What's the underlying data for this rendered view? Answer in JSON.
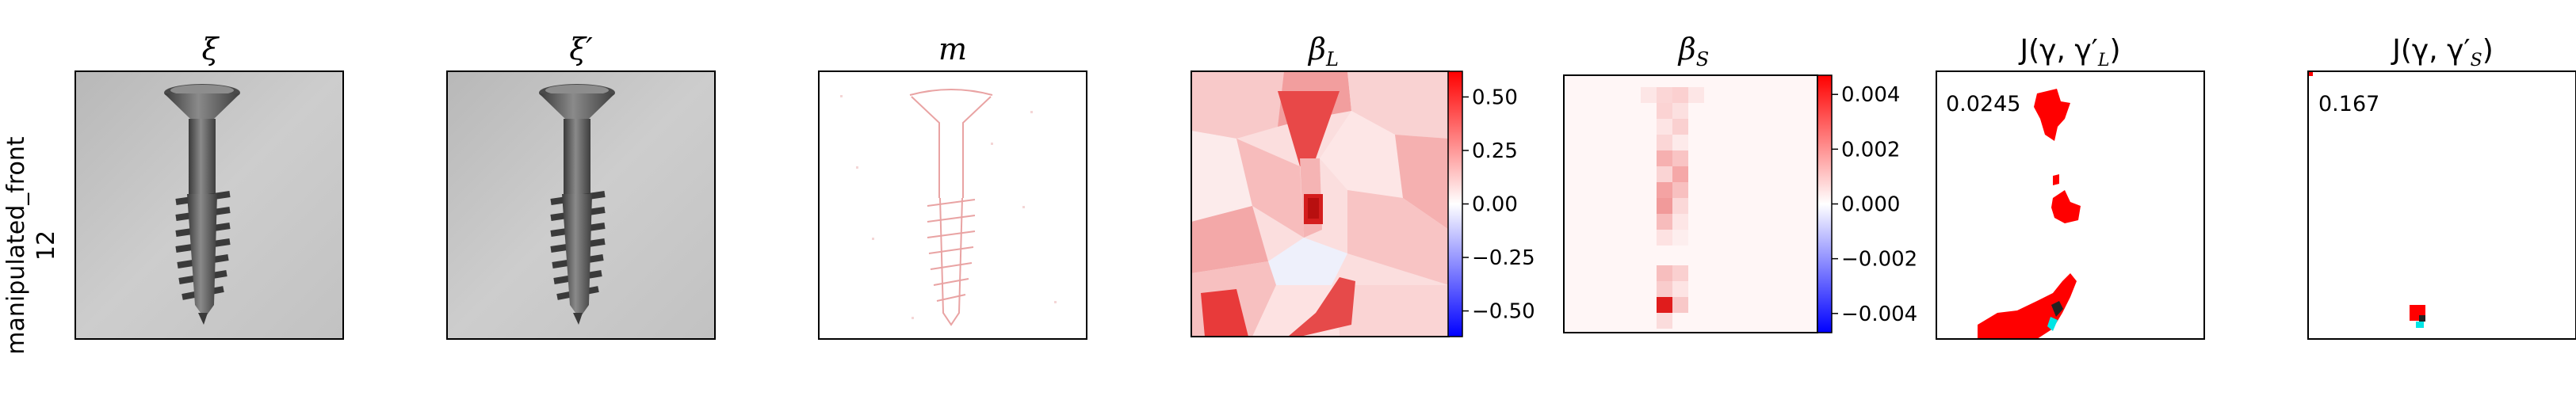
{
  "row": {
    "label_line1": "manipulated_front",
    "label_line2": "12"
  },
  "panels": [
    {
      "id": "xi",
      "title": "ξ"
    },
    {
      "id": "xi_prime",
      "title": "ξ′"
    },
    {
      "id": "m",
      "title": "m"
    },
    {
      "id": "beta_L",
      "title_main": "β",
      "title_sub": "L"
    },
    {
      "id": "beta_S",
      "title_main": "β",
      "title_sub": "S"
    },
    {
      "id": "J_L",
      "title": "J(γ, γ′",
      "title_sub": "L",
      "title_end": ")",
      "annotation": "0.0245"
    },
    {
      "id": "J_S",
      "title": "J(γ, γ′",
      "title_sub": "S",
      "title_end": ")",
      "annotation": "0.167"
    }
  ],
  "colorbars": [
    {
      "id": "beta_L_cbar",
      "ticks": [
        "0.50",
        "0.25",
        "0.00",
        "−0.25",
        "−0.50"
      ],
      "tick_values": [
        0.5,
        0.25,
        0,
        -0.25,
        -0.5
      ],
      "vmin": -0.62,
      "vmax": 0.62,
      "colors": {
        "max": "#ff0000",
        "mid": "#ffffff",
        "min": "#0000ff"
      }
    },
    {
      "id": "beta_S_cbar",
      "ticks": [
        "0.004",
        "0.002",
        "0.000",
        "−0.002",
        "−0.004"
      ],
      "tick_values": [
        0.004,
        0.002,
        0,
        -0.002,
        -0.004
      ],
      "vmin": -0.0047,
      "vmax": 0.0047,
      "colors": {
        "max": "#ff0000",
        "mid": "#ffffff",
        "min": "#0000ff"
      }
    }
  ],
  "colors": {
    "red": "#ff0000",
    "cyan": "#00e5e5",
    "frame": "#000000",
    "photo_bg": "#c4c4c4",
    "screw": "#555555"
  }
}
